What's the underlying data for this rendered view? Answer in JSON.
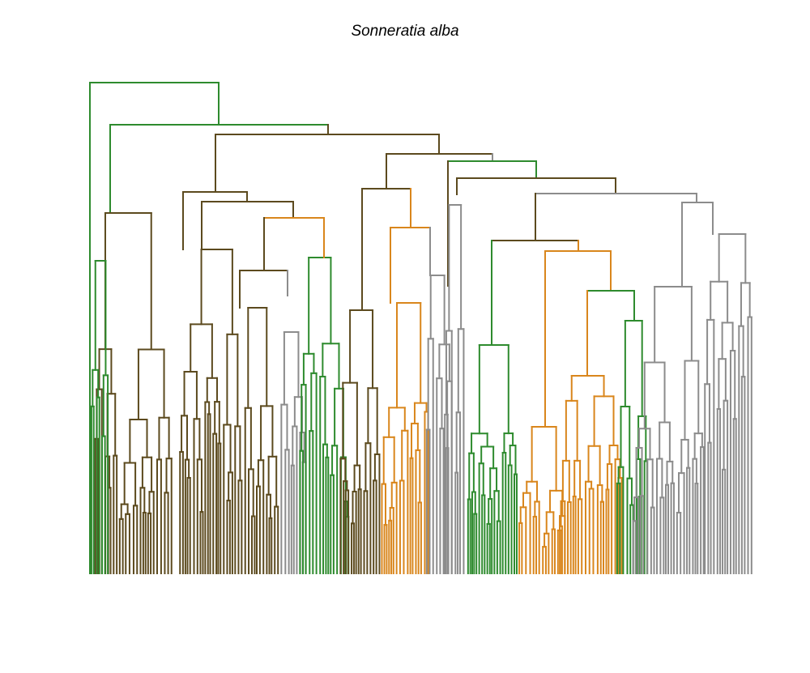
{
  "chart_data": {
    "type": "dendrogram",
    "title": "Sonneratia alba",
    "xlabel": "",
    "ylabel": "",
    "axes_visible": false,
    "n_leaves": 260,
    "cluster_colors": [
      {
        "name": "green",
        "hex": "#2e8b2e"
      },
      {
        "name": "brown",
        "hex": "#5c4a1e"
      },
      {
        "name": "orange",
        "hex": "#d9861c"
      },
      {
        "name": "gray",
        "hex": "#8c8c8c"
      }
    ]
  }
}
